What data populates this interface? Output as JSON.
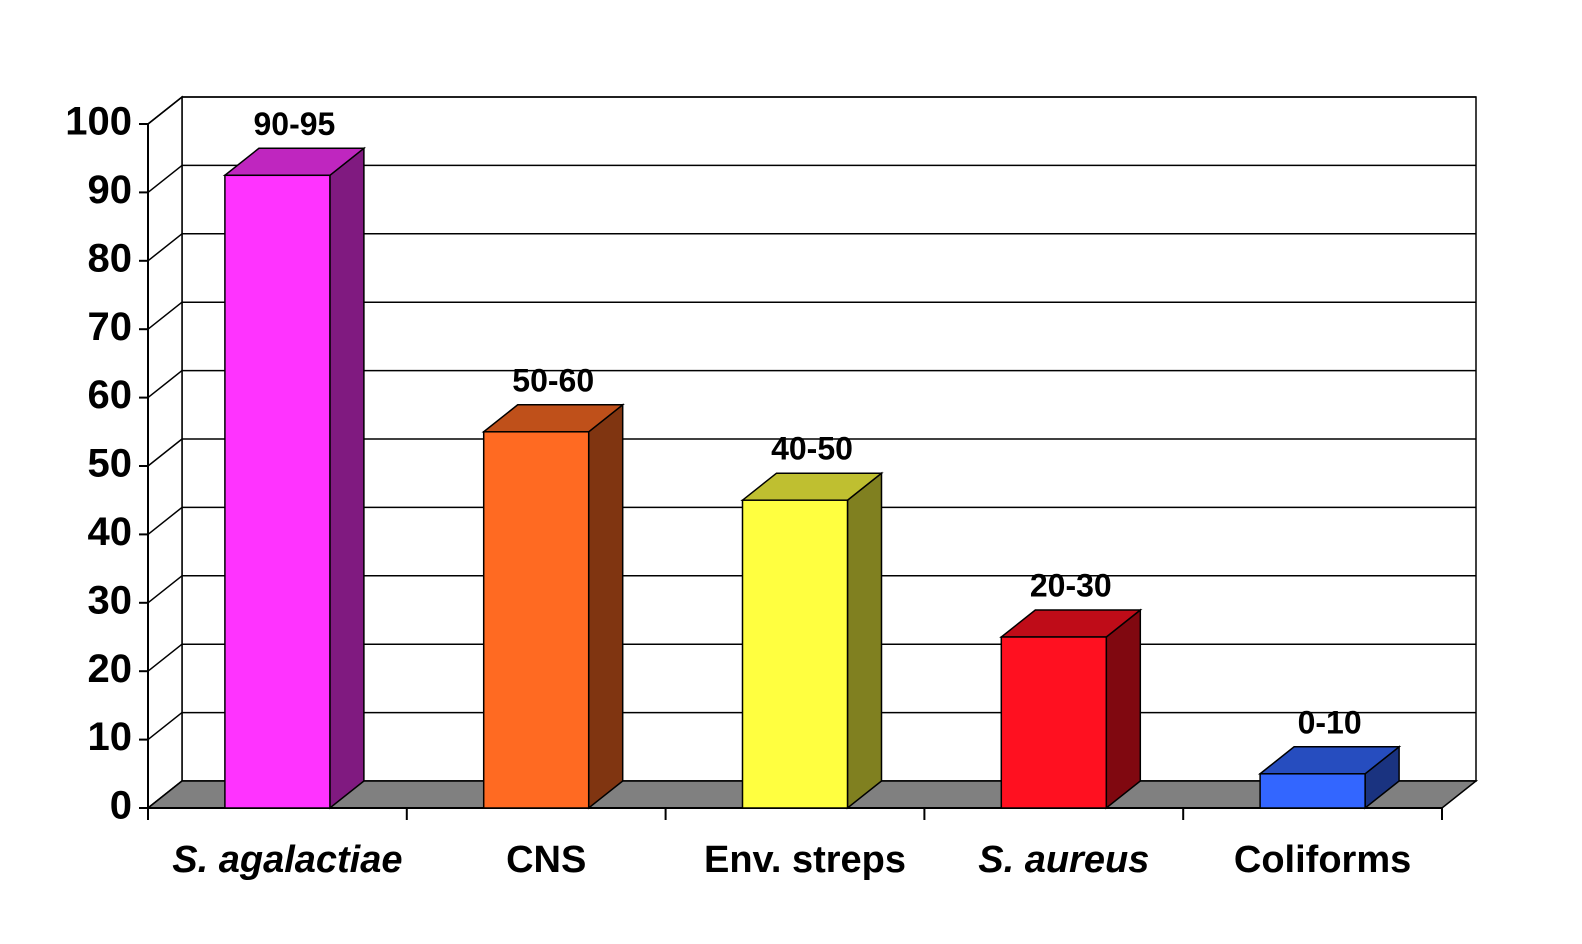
{
  "chart_data": {
    "type": "bar3d",
    "categories": [
      "S. agalactiae",
      "CNS",
      "Env. streps",
      "S. aureus",
      "Coliforms"
    ],
    "category_styles": [
      "italic",
      "normal",
      "normal",
      "italic",
      "normal"
    ],
    "values": [
      92.5,
      55,
      45,
      25,
      5
    ],
    "value_labels": [
      "90-95",
      "50-60",
      "40-50",
      "20-30",
      "0-10"
    ],
    "colors": [
      "#ff33ff",
      "#ff6a22",
      "#ffff40",
      "#ff1020",
      "#3366ff"
    ],
    "ylim": [
      0,
      100
    ],
    "yticks": [
      0,
      10,
      20,
      30,
      40,
      50,
      60,
      70,
      80,
      90,
      100
    ],
    "grid": true
  }
}
